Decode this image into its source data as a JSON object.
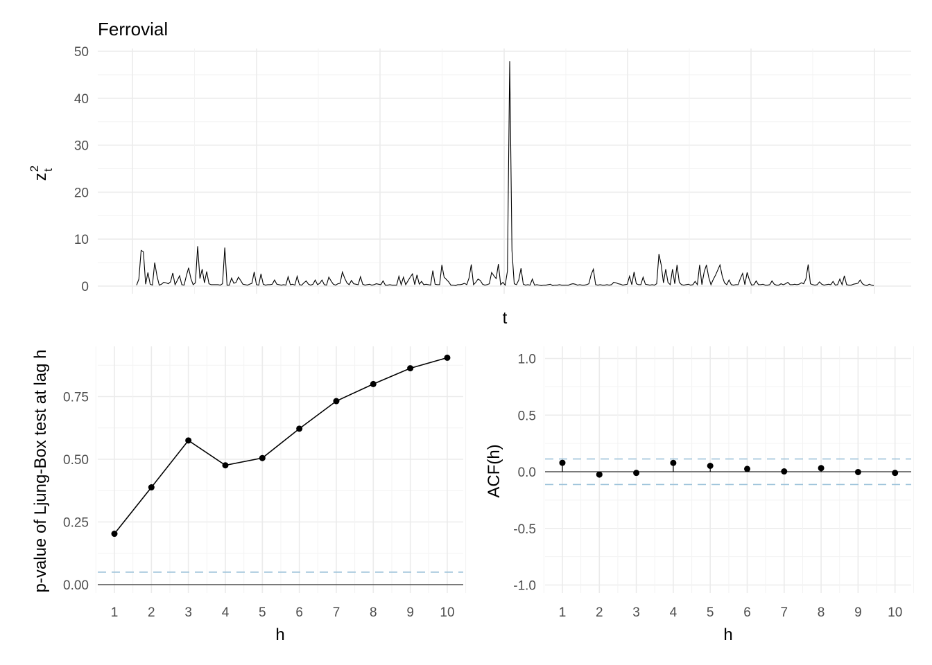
{
  "chart_data": [
    {
      "type": "line",
      "title": "Ferrovial",
      "xlabel": "t",
      "ylabel_base": "z",
      "ylabel_sup": "2",
      "ylabel_sub": "t",
      "ylim": [
        0,
        50
      ],
      "yticks": [
        0,
        10,
        20,
        30,
        40,
        50
      ],
      "xticks_shown": false,
      "grid": true,
      "series": [
        {
          "color": "#000000",
          "values": [
            0.2,
            1.5,
            7.6,
            7.3,
            0.4,
            2.9,
            0.4,
            0.2,
            5.0,
            2.2,
            0.2,
            0.4,
            0.8,
            0.7,
            0.5,
            0.9,
            2.8,
            0.3,
            1.2,
            2.2,
            0.3,
            0.2,
            2.2,
            3.9,
            1.6,
            0.3,
            0.7,
            8.5,
            1.6,
            3.6,
            0.7,
            3.1,
            0.5,
            0.3,
            0.3,
            0.3,
            0.3,
            0.2,
            0.5,
            8.2,
            0.2,
            0.2,
            1.7,
            0.6,
            0.8,
            1.9,
            1.2,
            0.4,
            0.3,
            0.2,
            0.4,
            0.6,
            3.0,
            0.3,
            0.2,
            2.6,
            0.4,
            0.2,
            0.3,
            0.3,
            0.4,
            1.3,
            0.4,
            0.3,
            0.2,
            0.3,
            0.2,
            2.0,
            0.3,
            0.4,
            0.2,
            2.1,
            0.3,
            0.2,
            0.7,
            1.1,
            0.4,
            0.2,
            0.4,
            1.3,
            0.3,
            0.6,
            1.3,
            0.3,
            0.2,
            1.9,
            1.1,
            0.4,
            0.2,
            0.5,
            0.6,
            3.0,
            1.7,
            0.7,
            0.3,
            1.2,
            0.5,
            0.4,
            0.3,
            2.0,
            0.4,
            0.2,
            0.3,
            0.4,
            0.2,
            0.3,
            0.5,
            0.4,
            0.3,
            1.1,
            0.2,
            0.2,
            0.3,
            0.2,
            0.2,
            0.2,
            2.1,
            0.3,
            1.9,
            0.3,
            1.1,
            1.9,
            2.6,
            0.3,
            2.4,
            0.4,
            1.0,
            0.3,
            0.4,
            0.3,
            0.2,
            3.3,
            0.4,
            0.3,
            0.3,
            4.5,
            1.9,
            1.4,
            0.9,
            0.2,
            0.2,
            0.1,
            0.3,
            0.3,
            0.4,
            0.6,
            0.3,
            1.7,
            4.6,
            0.3,
            0.8,
            1.5,
            1.2,
            0.4,
            0.2,
            0.3,
            0.5,
            2.9,
            2.2,
            1.6,
            4.7,
            0.3,
            0.8,
            0.2,
            3.2,
            47.9,
            7.6,
            0.5,
            0.3,
            1.3,
            3.8,
            0.4,
            0.2,
            0.3,
            0.2,
            1.5,
            0.2,
            0.3,
            0.2,
            0.1,
            0.2,
            0.2,
            0.3,
            0.4,
            0.1,
            0.2,
            0.2,
            0.3,
            0.2,
            0.2,
            0.2,
            0.2,
            0.4,
            0.5,
            0.4,
            0.2,
            0.3,
            0.2,
            0.2,
            0.3,
            0.5,
            2.4,
            3.6,
            0.3,
            0.2,
            0.3,
            0.2,
            0.2,
            0.3,
            0.2,
            0.3,
            0.8,
            0.7,
            0.5,
            0.4,
            0.2,
            0.3,
            0.4,
            2.1,
            0.3,
            3.0,
            0.5,
            0.3,
            0.3,
            1.9,
            0.4,
            0.3,
            0.2,
            0.3,
            0.2,
            0.5,
            6.8,
            4.5,
            0.7,
            3.6,
            0.8,
            0.3,
            3.6,
            0.5,
            4.5,
            0.8,
            0.3,
            0.2,
            0.3,
            0.4,
            0.2,
            0.3,
            1.0,
            0.3,
            4.5,
            0.3,
            3.0,
            4.5,
            1.9,
            0.3,
            1.4,
            2.3,
            3.4,
            4.5,
            2.1,
            0.7,
            0.3,
            1.3,
            0.3,
            0.2,
            0.3,
            0.3,
            1.6,
            2.7,
            0.3,
            2.9,
            1.3,
            0.2,
            0.3,
            1.1,
            0.3,
            0.3,
            0.4,
            0.2,
            0.2,
            0.3,
            1.1,
            0.4,
            0.2,
            0.2,
            0.5,
            0.3,
            0.5,
            0.8,
            0.3,
            0.3,
            0.4,
            0.3,
            0.4,
            0.7,
            0.5,
            1.5,
            4.6,
            0.5,
            0.3,
            0.2,
            0.3,
            0.9,
            0.4,
            0.2,
            0.3,
            0.4,
            0.3,
            1.0,
            0.2,
            0.3,
            1.5,
            0.3,
            2.2,
            0.3,
            0.2,
            0.2,
            0.4,
            0.5,
            0.6,
            1.3,
            0.5,
            0.2,
            0.1,
            0.4,
            0.2,
            0.1
          ]
        }
      ]
    },
    {
      "type": "line",
      "xlabel": "h",
      "ylabel": "p-value of Ljung-Box test at lag h",
      "x": [
        1,
        2,
        3,
        4,
        5,
        6,
        7,
        8,
        9,
        10
      ],
      "values": [
        0.203,
        0.388,
        0.575,
        0.476,
        0.505,
        0.622,
        0.732,
        0.8,
        0.863,
        0.905
      ],
      "ylim": [
        0,
        0.95
      ],
      "yticks": [
        0.0,
        0.25,
        0.5,
        0.75
      ],
      "ytick_labels": [
        "0.00",
        "0.25",
        "0.50",
        "0.75"
      ],
      "xticks": [
        1,
        2,
        3,
        4,
        5,
        6,
        7,
        8,
        9,
        10
      ],
      "reference_line": 0.05,
      "reference_color": "#9ec3da",
      "grid": true
    },
    {
      "type": "scatter",
      "xlabel": "h",
      "ylabel": "ACF(h)",
      "x": [
        1,
        2,
        3,
        4,
        5,
        6,
        7,
        8,
        9,
        10
      ],
      "values": [
        0.079,
        -0.025,
        -0.01,
        0.078,
        0.052,
        0.025,
        0.003,
        0.032,
        -0.003,
        -0.01
      ],
      "ylim": [
        -1.1,
        1.1
      ],
      "yticks": [
        -1.0,
        -0.5,
        0.0,
        0.5,
        1.0
      ],
      "ytick_labels": [
        "-1.0",
        "-0.5",
        "0.0",
        "0.5",
        "1.0"
      ],
      "xticks": [
        1,
        2,
        3,
        4,
        5,
        6,
        7,
        8,
        9,
        10
      ],
      "confidence_bounds": [
        0.113,
        -0.113
      ],
      "reference_color": "#9ec3da",
      "grid": true
    }
  ]
}
